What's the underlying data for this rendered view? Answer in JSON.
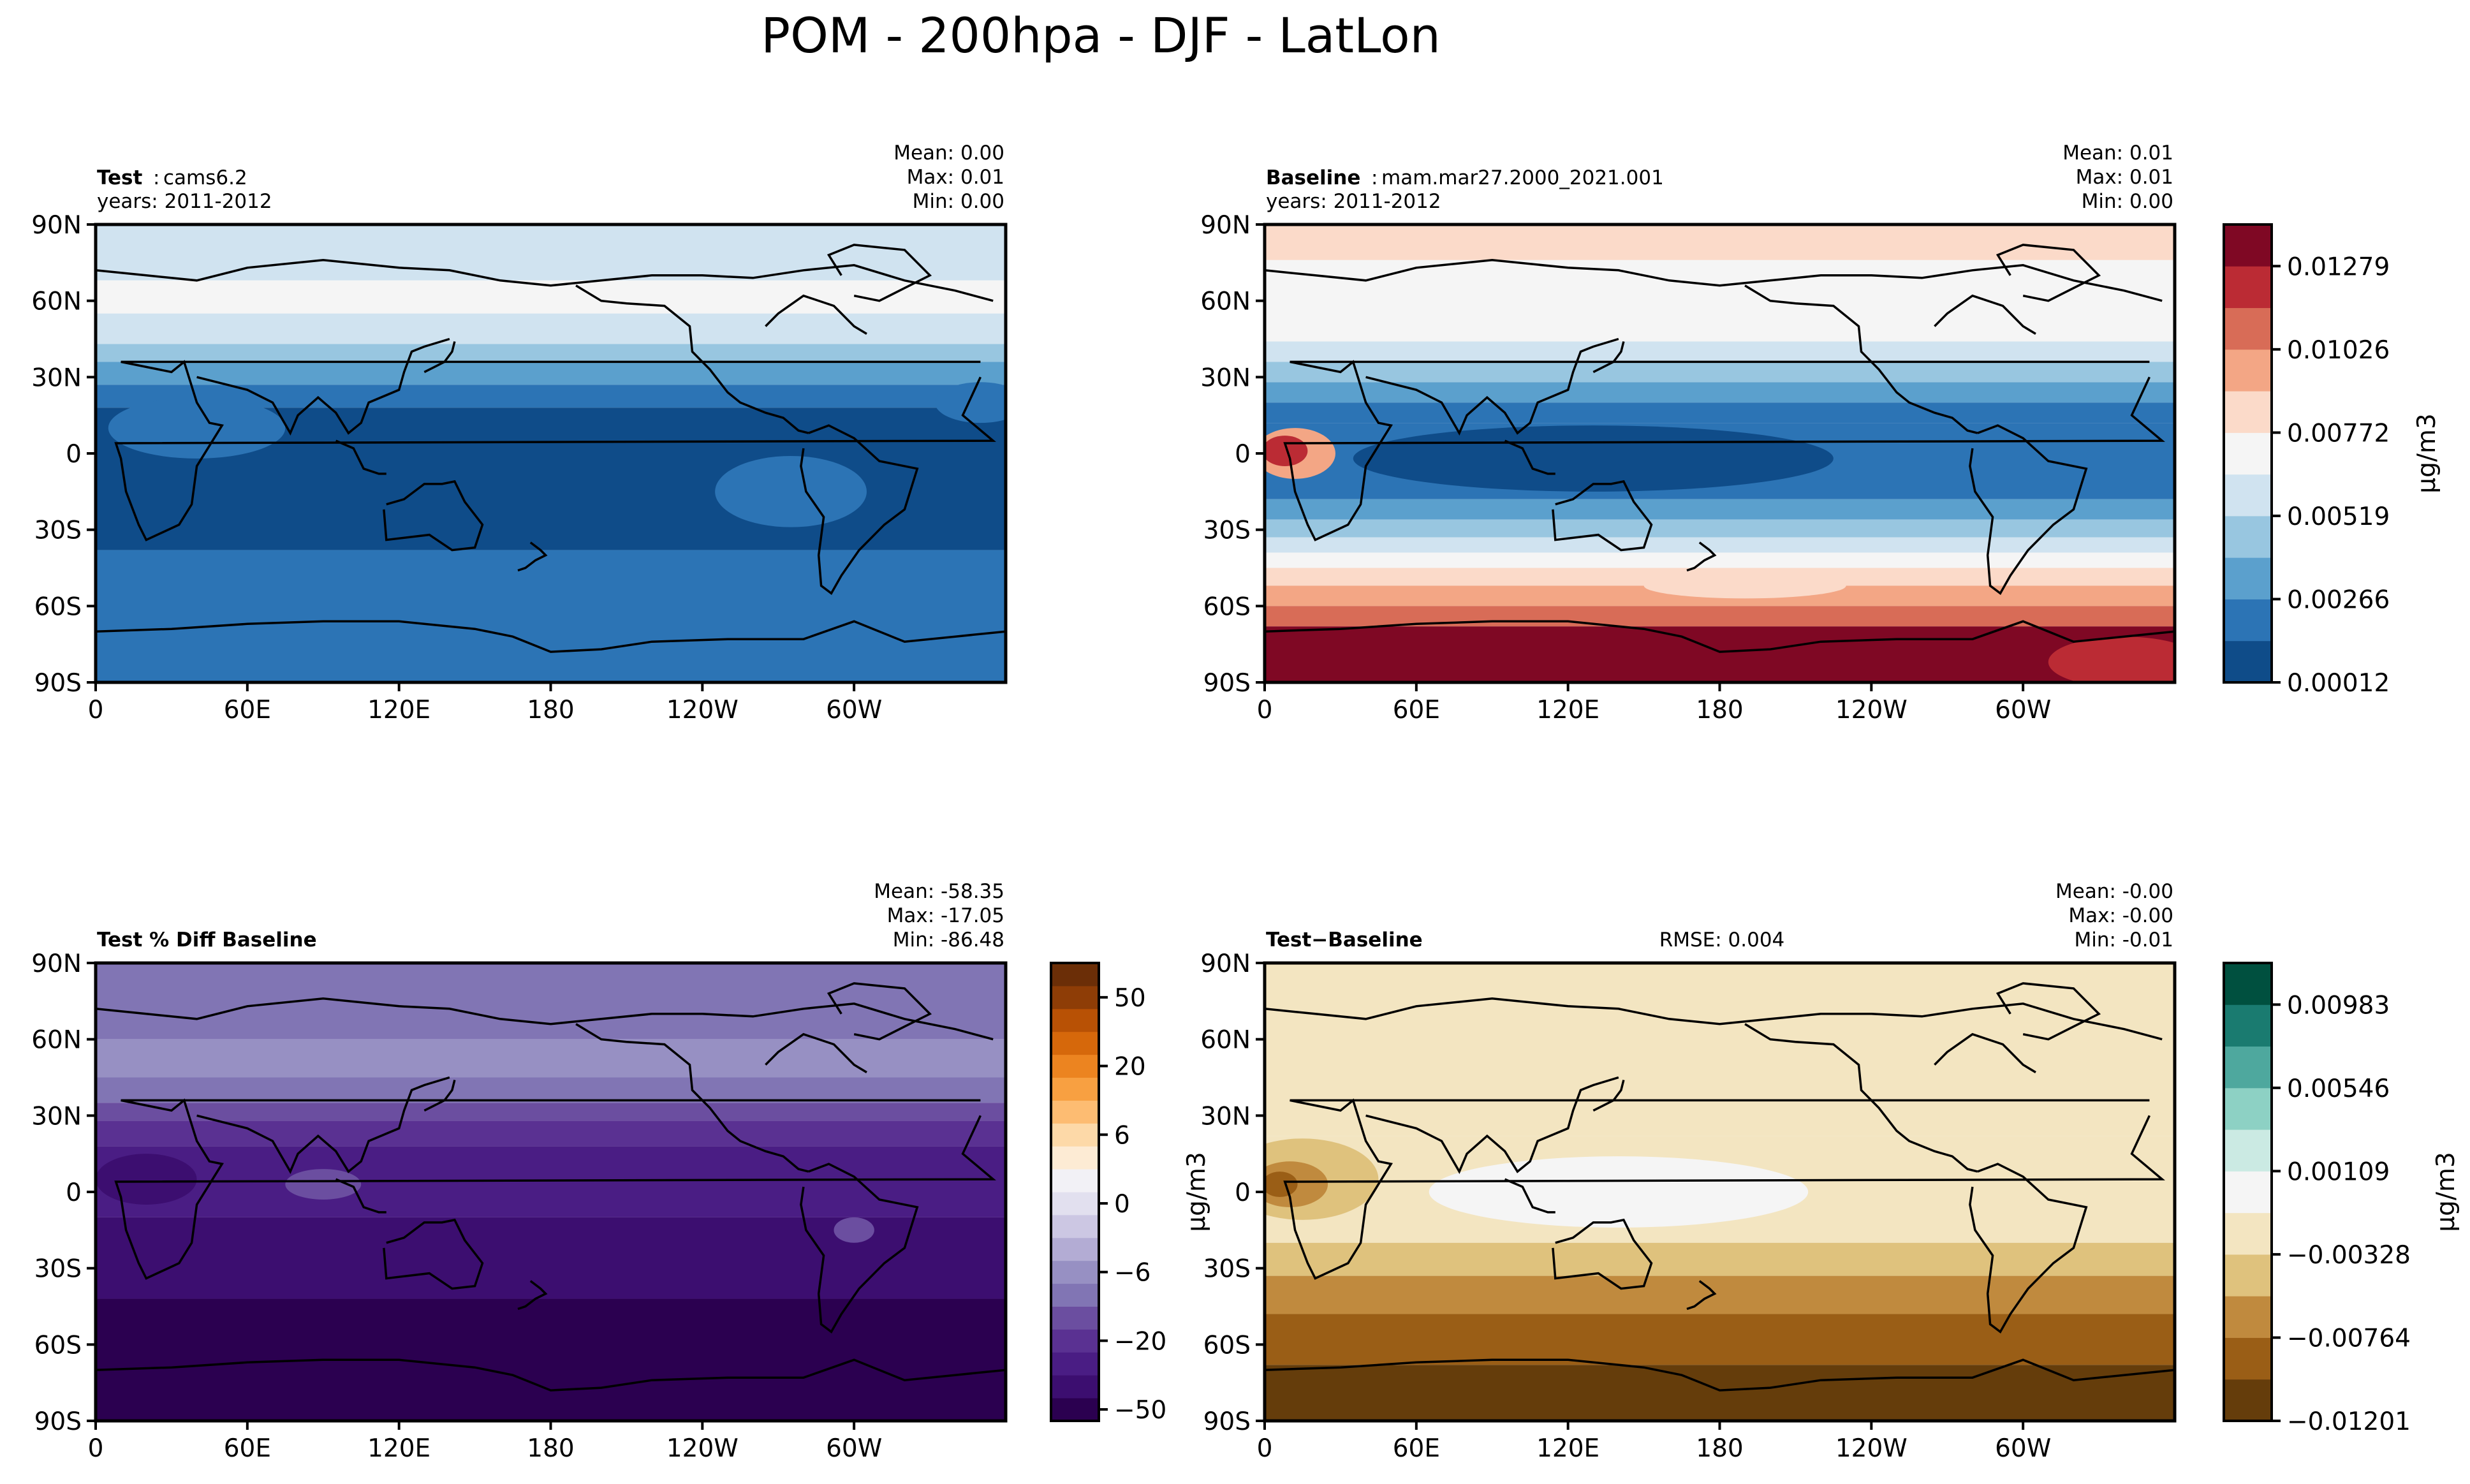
{
  "title": "POM - 200hpa - DJF - LatLon",
  "axes": {
    "lat_ticks": [
      "90N",
      "60N",
      "30N",
      "0",
      "30S",
      "60S",
      "90S"
    ],
    "lon_ticks": [
      "0",
      "60E",
      "120E",
      "180",
      "120W",
      "60W"
    ]
  },
  "panels": {
    "test": {
      "title_bold": "Test",
      "title_sep": ":",
      "title_rest": "cams6.2",
      "years": "years: 2011-2012",
      "stats": [
        "Mean:  0.00",
        "Max:  0.01",
        "Min:  0.00"
      ]
    },
    "baseline": {
      "title_bold": "Baseline",
      "title_sep": ":",
      "title_rest": "mam.mar27.2000_2021.001",
      "years": "years: 2011-2012",
      "stats": [
        "Mean:  0.01",
        "Max:  0.01",
        "Min:  0.00"
      ]
    },
    "pctdiff": {
      "title_bold": "Test % Diff Baseline",
      "stats": [
        "Mean: -58.35",
        "Max: -17.05",
        "Min: -86.48"
      ]
    },
    "diff": {
      "title_bold": "Test−Baseline",
      "rmse": "RMSE: 0.004",
      "stats": [
        "Mean: -0.00",
        "Max: -0.00",
        "Min: -0.01"
      ]
    }
  },
  "colorbars": {
    "main": {
      "label": "μg/m3",
      "tick_labels": [
        "0.01279",
        "0.01026",
        "0.00772",
        "0.00519",
        "0.00266",
        "0.00012"
      ],
      "colors": [
        "#0f4c89",
        "#2c74b5",
        "#5ba0cd",
        "#98c6e0",
        "#d0e3f0",
        "#f5f5f5",
        "#fbdac9",
        "#f3a685",
        "#d86c57",
        "#bb2b34",
        "#7f0824"
      ]
    },
    "pct": {
      "label": "μg/m3",
      "tick_labels": [
        "50",
        "20",
        "6",
        "0",
        "−6",
        "−20",
        "−50"
      ],
      "colors": [
        "#2b0050",
        "#3c0e70",
        "#4a1d84",
        "#5a3192",
        "#6b4ea0",
        "#8175b4",
        "#9790c3",
        "#b3acd4",
        "#ccc7e3",
        "#e2e0ef",
        "#f2f1f6",
        "#fdebd4",
        "#fdd9a8",
        "#fdbc72",
        "#f8a041",
        "#ec8420",
        "#d6680b",
        "#b85105",
        "#8e3d06",
        "#6b2e07"
      ]
    },
    "diff": {
      "label": "μg/m3",
      "tick_labels": [
        "0.00983",
        "0.00546",
        "0.00109",
        "−0.00328",
        "−0.00764",
        "−0.01201"
      ],
      "colors": [
        "#653d0b",
        "#9a5e16",
        "#c08a3e",
        "#dfc27d",
        "#f3e5c1",
        "#f5f5f5",
        "#cbeae3",
        "#8dd1c4",
        "#4ea89e",
        "#1a7b70",
        "#00503f"
      ]
    }
  },
  "fields": {
    "test": {
      "bands": [
        {
          "from": 90,
          "to": 68,
          "color": "#d0e3f0"
        },
        {
          "from": 68,
          "to": 55,
          "color": "#f5f5f5"
        },
        {
          "from": 55,
          "to": 43,
          "color": "#d0e3f0"
        },
        {
          "from": 43,
          "to": 36,
          "color": "#98c6e0"
        },
        {
          "from": 36,
          "to": 27,
          "color": "#5ba0cd"
        },
        {
          "from": 27,
          "to": 18,
          "color": "#2c74b5"
        },
        {
          "from": 18,
          "to": -38,
          "color": "#0f4c89"
        },
        {
          "from": -38,
          "to": -90,
          "color": "#2c74b5"
        }
      ],
      "blobs": [
        {
          "lon": 40,
          "lat": 10,
          "rx": 35,
          "ry": 12,
          "color": "#2c74b5"
        },
        {
          "lon": 275,
          "lat": -15,
          "rx": 30,
          "ry": 14,
          "color": "#2c74b5"
        },
        {
          "lon": 350,
          "lat": 20,
          "rx": 18,
          "ry": 8,
          "color": "#2c74b5"
        }
      ]
    },
    "baseline": {
      "bands": [
        {
          "from": 90,
          "to": 76,
          "color": "#fbdac9"
        },
        {
          "from": 76,
          "to": 44,
          "color": "#f5f5f5"
        },
        {
          "from": 44,
          "to": 36,
          "color": "#d0e3f0"
        },
        {
          "from": 36,
          "to": 28,
          "color": "#98c6e0"
        },
        {
          "from": 28,
          "to": 20,
          "color": "#5ba0cd"
        },
        {
          "from": 20,
          "to": 12,
          "color": "#2c74b5"
        },
        {
          "from": 12,
          "to": -18,
          "color": "#2c74b5"
        },
        {
          "from": -18,
          "to": -26,
          "color": "#5ba0cd"
        },
        {
          "from": -26,
          "to": -33,
          "color": "#98c6e0"
        },
        {
          "from": -33,
          "to": -39,
          "color": "#d0e3f0"
        },
        {
          "from": -39,
          "to": -45,
          "color": "#f5f5f5"
        },
        {
          "from": -45,
          "to": -52,
          "color": "#fbdac9"
        },
        {
          "from": -52,
          "to": -60,
          "color": "#f3a685"
        },
        {
          "from": -60,
          "to": -68,
          "color": "#d86c57"
        },
        {
          "from": -68,
          "to": -90,
          "color": "#7f0824"
        }
      ],
      "blobs": [
        {
          "lon": 130,
          "lat": -2,
          "rx": 95,
          "ry": 13,
          "color": "#0f4c89"
        },
        {
          "lon": 12,
          "lat": 0,
          "rx": 16,
          "ry": 10,
          "color": "#f3a685"
        },
        {
          "lon": 8,
          "lat": 1,
          "rx": 9,
          "ry": 6,
          "color": "#bb2b34"
        },
        {
          "lon": 190,
          "lat": -52,
          "rx": 40,
          "ry": 5,
          "color": "#fbdac9"
        },
        {
          "lon": 340,
          "lat": -82,
          "rx": 30,
          "ry": 10,
          "color": "#bb2b34"
        }
      ]
    },
    "pctdiff": {
      "bands": [
        {
          "from": 90,
          "to": 60,
          "color": "#8175b4"
        },
        {
          "from": 60,
          "to": 45,
          "color": "#9790c3"
        },
        {
          "from": 45,
          "to": 35,
          "color": "#8175b4"
        },
        {
          "from": 35,
          "to": 28,
          "color": "#6b4ea0"
        },
        {
          "from": 28,
          "to": 18,
          "color": "#5a3192"
        },
        {
          "from": 18,
          "to": -10,
          "color": "#4a1d84"
        },
        {
          "from": -10,
          "to": -42,
          "color": "#3c0e70"
        },
        {
          "from": -42,
          "to": -90,
          "color": "#2b0050"
        }
      ],
      "blobs": [
        {
          "lon": 90,
          "lat": 3,
          "rx": 15,
          "ry": 6,
          "color": "#6b4ea0"
        },
        {
          "lon": 300,
          "lat": -15,
          "rx": 8,
          "ry": 5,
          "color": "#6b4ea0"
        },
        {
          "lon": 20,
          "lat": 5,
          "rx": 20,
          "ry": 10,
          "color": "#3c0e70"
        }
      ]
    },
    "diff": {
      "bands": [
        {
          "from": 90,
          "to": 22,
          "color": "#f3e5c1"
        },
        {
          "from": 22,
          "to": -20,
          "color": "#f3e5c1"
        },
        {
          "from": -20,
          "to": -33,
          "color": "#dfc27d"
        },
        {
          "from": -33,
          "to": -48,
          "color": "#c08a3e"
        },
        {
          "from": -48,
          "to": -68,
          "color": "#9a5e16"
        },
        {
          "from": -68,
          "to": -90,
          "color": "#653d0b"
        }
      ],
      "blobs": [
        {
          "lon": 140,
          "lat": 0,
          "rx": 75,
          "ry": 14,
          "color": "#f5f5f5"
        },
        {
          "lon": 15,
          "lat": 5,
          "rx": 30,
          "ry": 16,
          "color": "#dfc27d"
        },
        {
          "lon": 10,
          "lat": 3,
          "rx": 15,
          "ry": 9,
          "color": "#c08a3e"
        },
        {
          "lon": 6,
          "lat": 3,
          "rx": 7,
          "ry": 5,
          "color": "#9a5e16"
        }
      ]
    }
  }
}
